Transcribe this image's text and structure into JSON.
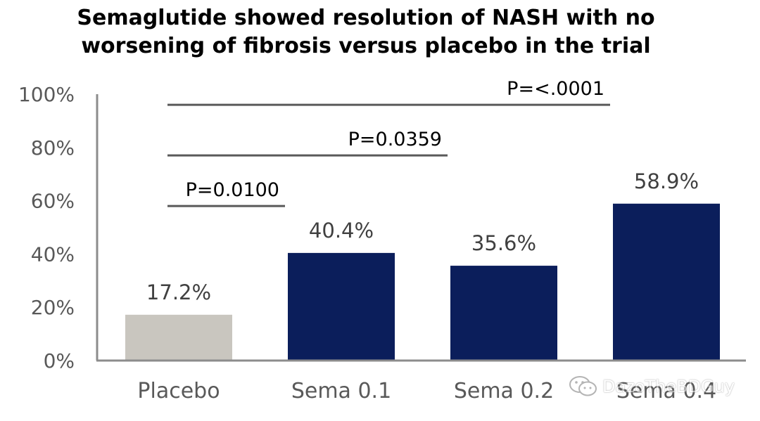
{
  "chart_data": {
    "type": "bar",
    "title_lines": [
      "Semaglutide showed resolution of NASH with no",
      "worsening of fibrosis versus placebo in the trial"
    ],
    "categories": [
      "Placebo",
      "Sema 0.1",
      "Sema 0.2",
      "Sema 0.4"
    ],
    "values": [
      17.2,
      40.4,
      35.6,
      58.9
    ],
    "data_labels": [
      "17.2%",
      "40.4%",
      "35.6%",
      "58.9%"
    ],
    "bar_colors": [
      "#c9c6bf",
      "#0b1e5b",
      "#0b1e5b",
      "#0b1e5b"
    ],
    "ylim": [
      0,
      100
    ],
    "yticks": [
      0,
      20,
      40,
      60,
      80,
      100
    ],
    "ytick_labels": [
      "0%",
      "20%",
      "40%",
      "60%",
      "80%",
      "100%"
    ],
    "xlabel": "",
    "ylabel": "",
    "grid": false,
    "comparisons": [
      {
        "from": 0,
        "to": 1,
        "level": 58,
        "label": "P=0.0100"
      },
      {
        "from": 0,
        "to": 2,
        "level": 77,
        "label": "P=0.0359"
      },
      {
        "from": 0,
        "to": 3,
        "level": 96,
        "label": "P=<.0001"
      }
    ]
  },
  "watermark": {
    "icon": "wechat-icon",
    "text": "DazoTheBDGuy"
  }
}
